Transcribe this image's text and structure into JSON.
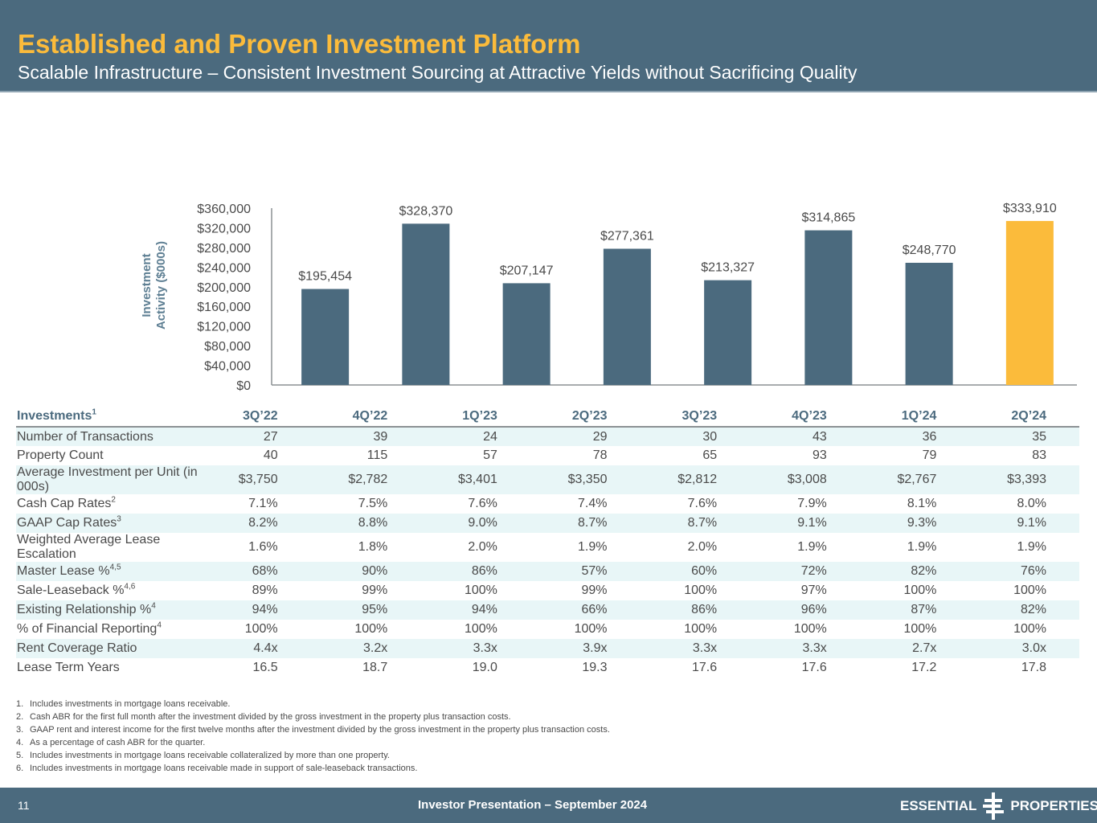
{
  "header": {
    "title": "Established and Proven Investment Platform",
    "subtitle": "Scalable Infrastructure – Consistent Investment Sourcing at Attractive Yields without Sacrificing Quality"
  },
  "colors": {
    "header_bg": "#4b6a7e",
    "title": "#fbbb3b",
    "bar": "#4b6a7e",
    "bar_highlight": "#fbbb3b",
    "row_shade": "#e8f6f7"
  },
  "chart_data": {
    "type": "bar",
    "title": "",
    "xlabel": "",
    "ylabel": "Investment Activity ($000s)",
    "ylabel_lines": [
      "Investment",
      "Activity ($000s)"
    ],
    "categories": [
      "3Q’22",
      "4Q’22",
      "1Q’23",
      "2Q’23",
      "3Q’23",
      "4Q’23",
      "1Q’24",
      "2Q’24"
    ],
    "values": [
      195454,
      328370,
      207147,
      277361,
      213327,
      314865,
      248770,
      333910
    ],
    "data_labels": [
      "$195,454",
      "$328,370",
      "$207,147",
      "$277,361",
      "$213,327",
      "$314,865",
      "$248,770",
      "$333,910"
    ],
    "highlight_index": 7,
    "ylim": [
      0,
      360000
    ],
    "yticks": [
      0,
      40000,
      80000,
      120000,
      160000,
      200000,
      240000,
      280000,
      320000,
      360000
    ],
    "ytick_labels": [
      "$0",
      "$40,000",
      "$80,000",
      "$120,000",
      "$160,000",
      "$200,000",
      "$240,000",
      "$280,000",
      "$320,000",
      "$360,000"
    ],
    "grid": false,
    "legend": "none"
  },
  "table": {
    "header_label": "Investments",
    "header_sup": "1",
    "columns": [
      "3Q’22",
      "4Q’22",
      "1Q’23",
      "2Q’23",
      "3Q’23",
      "4Q’23",
      "1Q’24",
      "2Q’24"
    ],
    "rows": [
      {
        "label": "Number of Transactions",
        "sup": "",
        "values": [
          "27",
          "39",
          "24",
          "29",
          "30",
          "43",
          "36",
          "35"
        ]
      },
      {
        "label": "Property Count",
        "sup": "",
        "values": [
          "40",
          "115",
          "57",
          "78",
          "65",
          "93",
          "79",
          "83"
        ]
      },
      {
        "label": "Average Investment per Unit (in 000s)",
        "sup": "",
        "values": [
          "$3,750",
          "$2,782",
          "$3,401",
          "$3,350",
          "$2,812",
          "$3,008",
          "$2,767",
          "$3,393"
        ]
      },
      {
        "label": "Cash Cap Rates",
        "sup": "2",
        "values": [
          "7.1%",
          "7.5%",
          "7.6%",
          "7.4%",
          "7.6%",
          "7.9%",
          "8.1%",
          "8.0%"
        ]
      },
      {
        "label": "GAAP Cap Rates",
        "sup": "3",
        "values": [
          "8.2%",
          "8.8%",
          "9.0%",
          "8.7%",
          "8.7%",
          "9.1%",
          "9.3%",
          "9.1%"
        ]
      },
      {
        "label": "Weighted Average Lease Escalation",
        "sup": "",
        "values": [
          "1.6%",
          "1.8%",
          "2.0%",
          "1.9%",
          "2.0%",
          "1.9%",
          "1.9%",
          "1.9%"
        ]
      },
      {
        "label": "Master Lease %",
        "sup": "4,5",
        "values": [
          "68%",
          "90%",
          "86%",
          "57%",
          "60%",
          "72%",
          "82%",
          "76%"
        ]
      },
      {
        "label": "Sale-Leaseback %",
        "sup": "4,6",
        "values": [
          "89%",
          "99%",
          "100%",
          "99%",
          "100%",
          "97%",
          "100%",
          "100%"
        ]
      },
      {
        "label": "Existing Relationship %",
        "sup": "4",
        "values": [
          "94%",
          "95%",
          "94%",
          "66%",
          "86%",
          "96%",
          "87%",
          "82%"
        ]
      },
      {
        "label": "% of Financial Reporting",
        "sup": "4",
        "values": [
          "100%",
          "100%",
          "100%",
          "100%",
          "100%",
          "100%",
          "100%",
          "100%"
        ]
      },
      {
        "label": "Rent Coverage Ratio",
        "sup": "",
        "values": [
          "4.4x",
          "3.2x",
          "3.3x",
          "3.9x",
          "3.3x",
          "3.3x",
          "2.7x",
          "3.0x"
        ]
      },
      {
        "label": "Lease Term Years",
        "sup": "",
        "values": [
          "16.5",
          "18.7",
          "19.0",
          "19.3",
          "17.6",
          "17.6",
          "17.2",
          "17.8"
        ]
      }
    ]
  },
  "footnotes": [
    {
      "num": "1.",
      "text": "Includes investments in mortgage loans receivable."
    },
    {
      "num": "2.",
      "text": "Cash ABR for the first full month after the investment divided by the gross investment in the property plus transaction costs."
    },
    {
      "num": "3.",
      "text": "GAAP rent and interest income for the first twelve months after the investment divided by the gross investment in the property plus transaction costs."
    },
    {
      "num": "4.",
      "text": "As a percentage of cash ABR for the quarter."
    },
    {
      "num": "5.",
      "text": "Includes investments in mortgage loans receivable collateralized by more than one property."
    },
    {
      "num": "6.",
      "text": "Includes investments in mortgage loans receivable made in support of sale-leaseback transactions."
    }
  ],
  "footer": {
    "page_number": "11",
    "text": "Investor Presentation – September 2024",
    "logo_left": "ESSENTIAL",
    "logo_right": "PROPERTIES",
    "logo_icon": "essential-properties-logo-mark"
  }
}
